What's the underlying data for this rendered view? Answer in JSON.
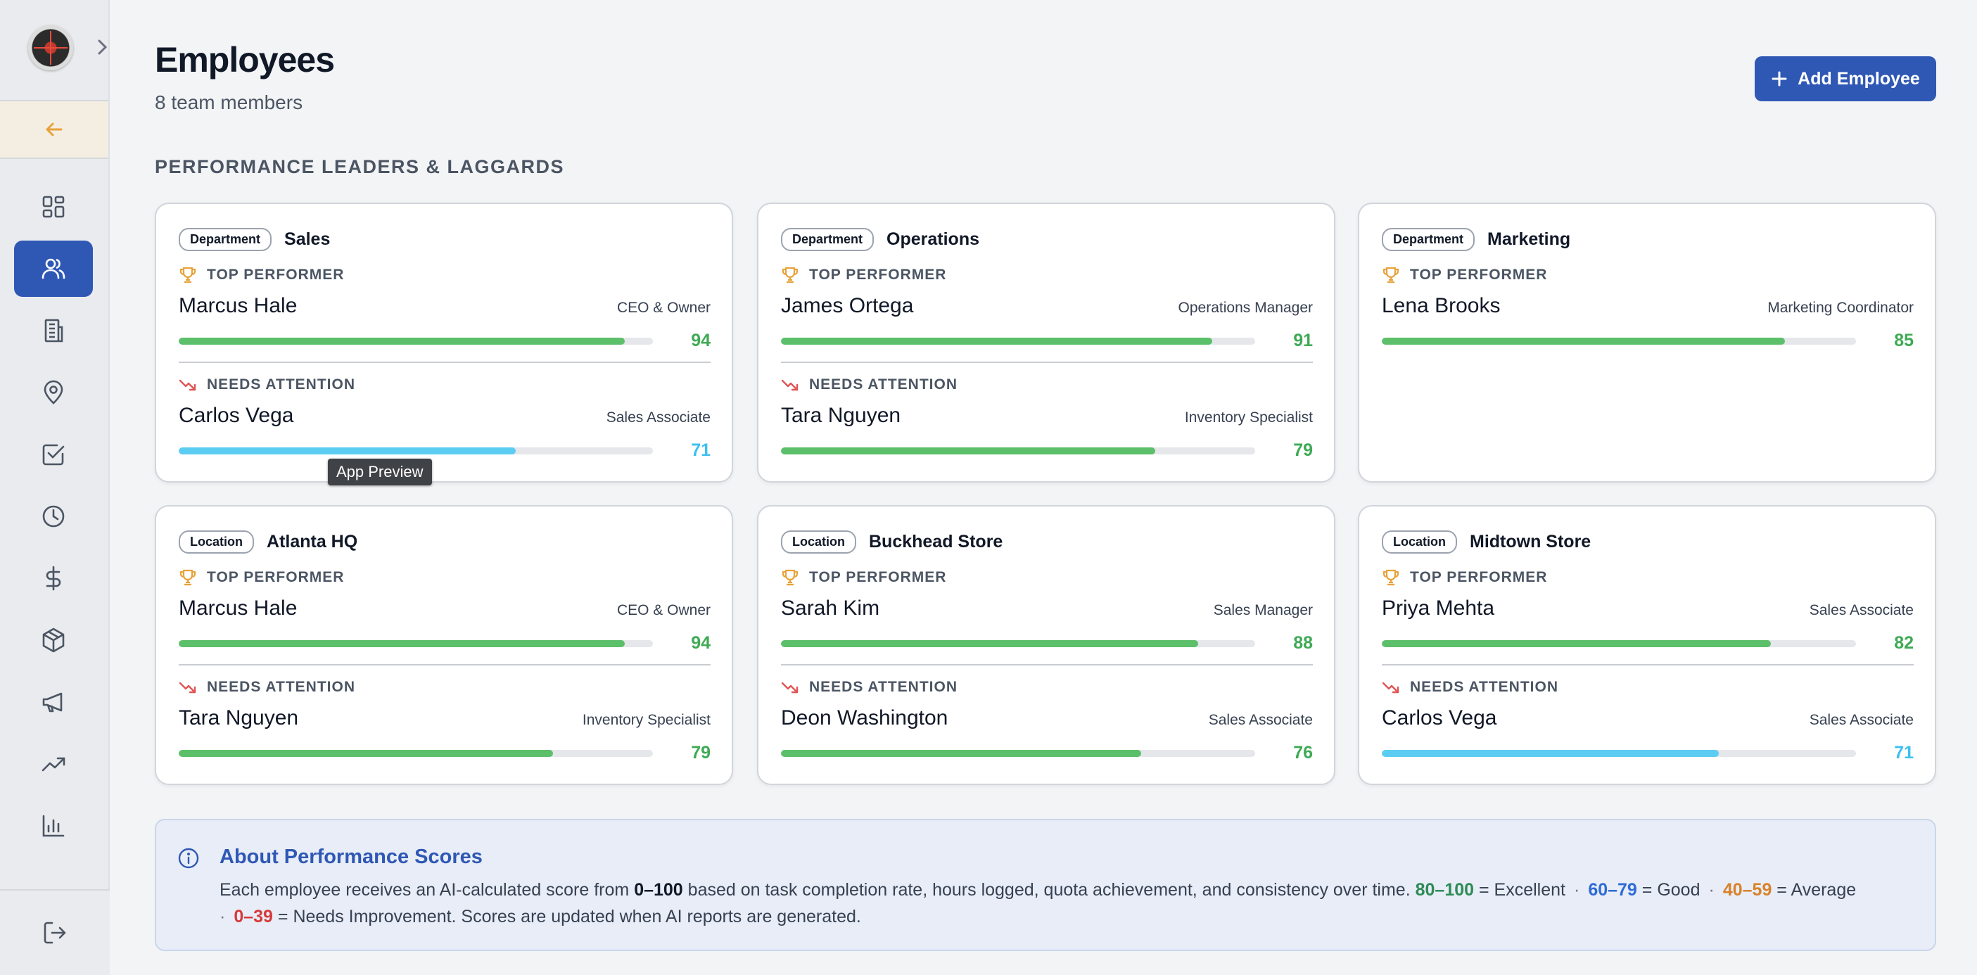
{
  "header": {
    "title": "Employees",
    "subtitle": "8 team members",
    "add_label": "Add Employee"
  },
  "section_title": "PERFORMANCE LEADERS & LAGGARDS",
  "labels": {
    "top": "TOP PERFORMER",
    "attention": "NEEDS ATTENTION"
  },
  "sidebar": {
    "items": [
      {
        "icon": "dashboard-icon",
        "active": false
      },
      {
        "icon": "users-icon",
        "active": true
      },
      {
        "icon": "building-icon",
        "active": false
      },
      {
        "icon": "location-pin-icon",
        "active": false
      },
      {
        "icon": "checkbox-icon",
        "active": false
      },
      {
        "icon": "clock-icon",
        "active": false
      },
      {
        "icon": "dollar-icon",
        "active": false
      },
      {
        "icon": "box-icon",
        "active": false
      },
      {
        "icon": "megaphone-icon",
        "active": false
      },
      {
        "icon": "trending-up-icon",
        "active": false
      },
      {
        "icon": "bar-chart-icon",
        "active": false
      }
    ]
  },
  "cards": [
    {
      "tag": "Department",
      "name": "Sales",
      "top": {
        "name": "Marcus Hale",
        "role": "CEO & Owner",
        "score": "94"
      },
      "attention": {
        "name": "Carlos Vega",
        "role": "Sales Associate",
        "score": "71"
      }
    },
    {
      "tag": "Department",
      "name": "Operations",
      "top": {
        "name": "James Ortega",
        "role": "Operations Manager",
        "score": "91"
      },
      "attention": {
        "name": "Tara Nguyen",
        "role": "Inventory Specialist",
        "score": "79"
      }
    },
    {
      "tag": "Department",
      "name": "Marketing",
      "top": {
        "name": "Lena Brooks",
        "role": "Marketing Coordinator",
        "score": "85"
      }
    },
    {
      "tag": "Location",
      "name": "Atlanta HQ",
      "top": {
        "name": "Marcus Hale",
        "role": "CEO & Owner",
        "score": "94"
      },
      "attention": {
        "name": "Tara Nguyen",
        "role": "Inventory Specialist",
        "score": "79"
      }
    },
    {
      "tag": "Location",
      "name": "Buckhead Store",
      "top": {
        "name": "Sarah Kim",
        "role": "Sales Manager",
        "score": "88"
      },
      "attention": {
        "name": "Deon Washington",
        "role": "Sales Associate",
        "score": "76"
      }
    },
    {
      "tag": "Location",
      "name": "Midtown Store",
      "top": {
        "name": "Priya Mehta",
        "role": "Sales Associate",
        "score": "82"
      },
      "attention": {
        "name": "Carlos Vega",
        "role": "Sales Associate",
        "score": "71"
      }
    }
  ],
  "tooltip": "App Preview",
  "info": {
    "title": "About Performance Scores",
    "text_1": "Each employee receives an AI-calculated score from ",
    "range": "0–100",
    "text_2": " based on task completion rate, hours logged, quota achievement, and consistency over time. ",
    "excellent_range": "80–100",
    "excellent_label": " = Excellent",
    "good_range": "60–79",
    "good_label": " = Good",
    "average_range": "40–59",
    "average_label": " = Average",
    "needs_range": "0–39",
    "needs_label": " = Needs Improvement. Scores are updated when AI reports are generated.",
    "sep": "·"
  },
  "colors": {
    "accent": "#2f58b5",
    "score_green": "#5cbf6a",
    "score_cyan": "#5ccdf2",
    "score_green_text": "#3faa55",
    "score_cyan_text": "#3cc0ef"
  }
}
